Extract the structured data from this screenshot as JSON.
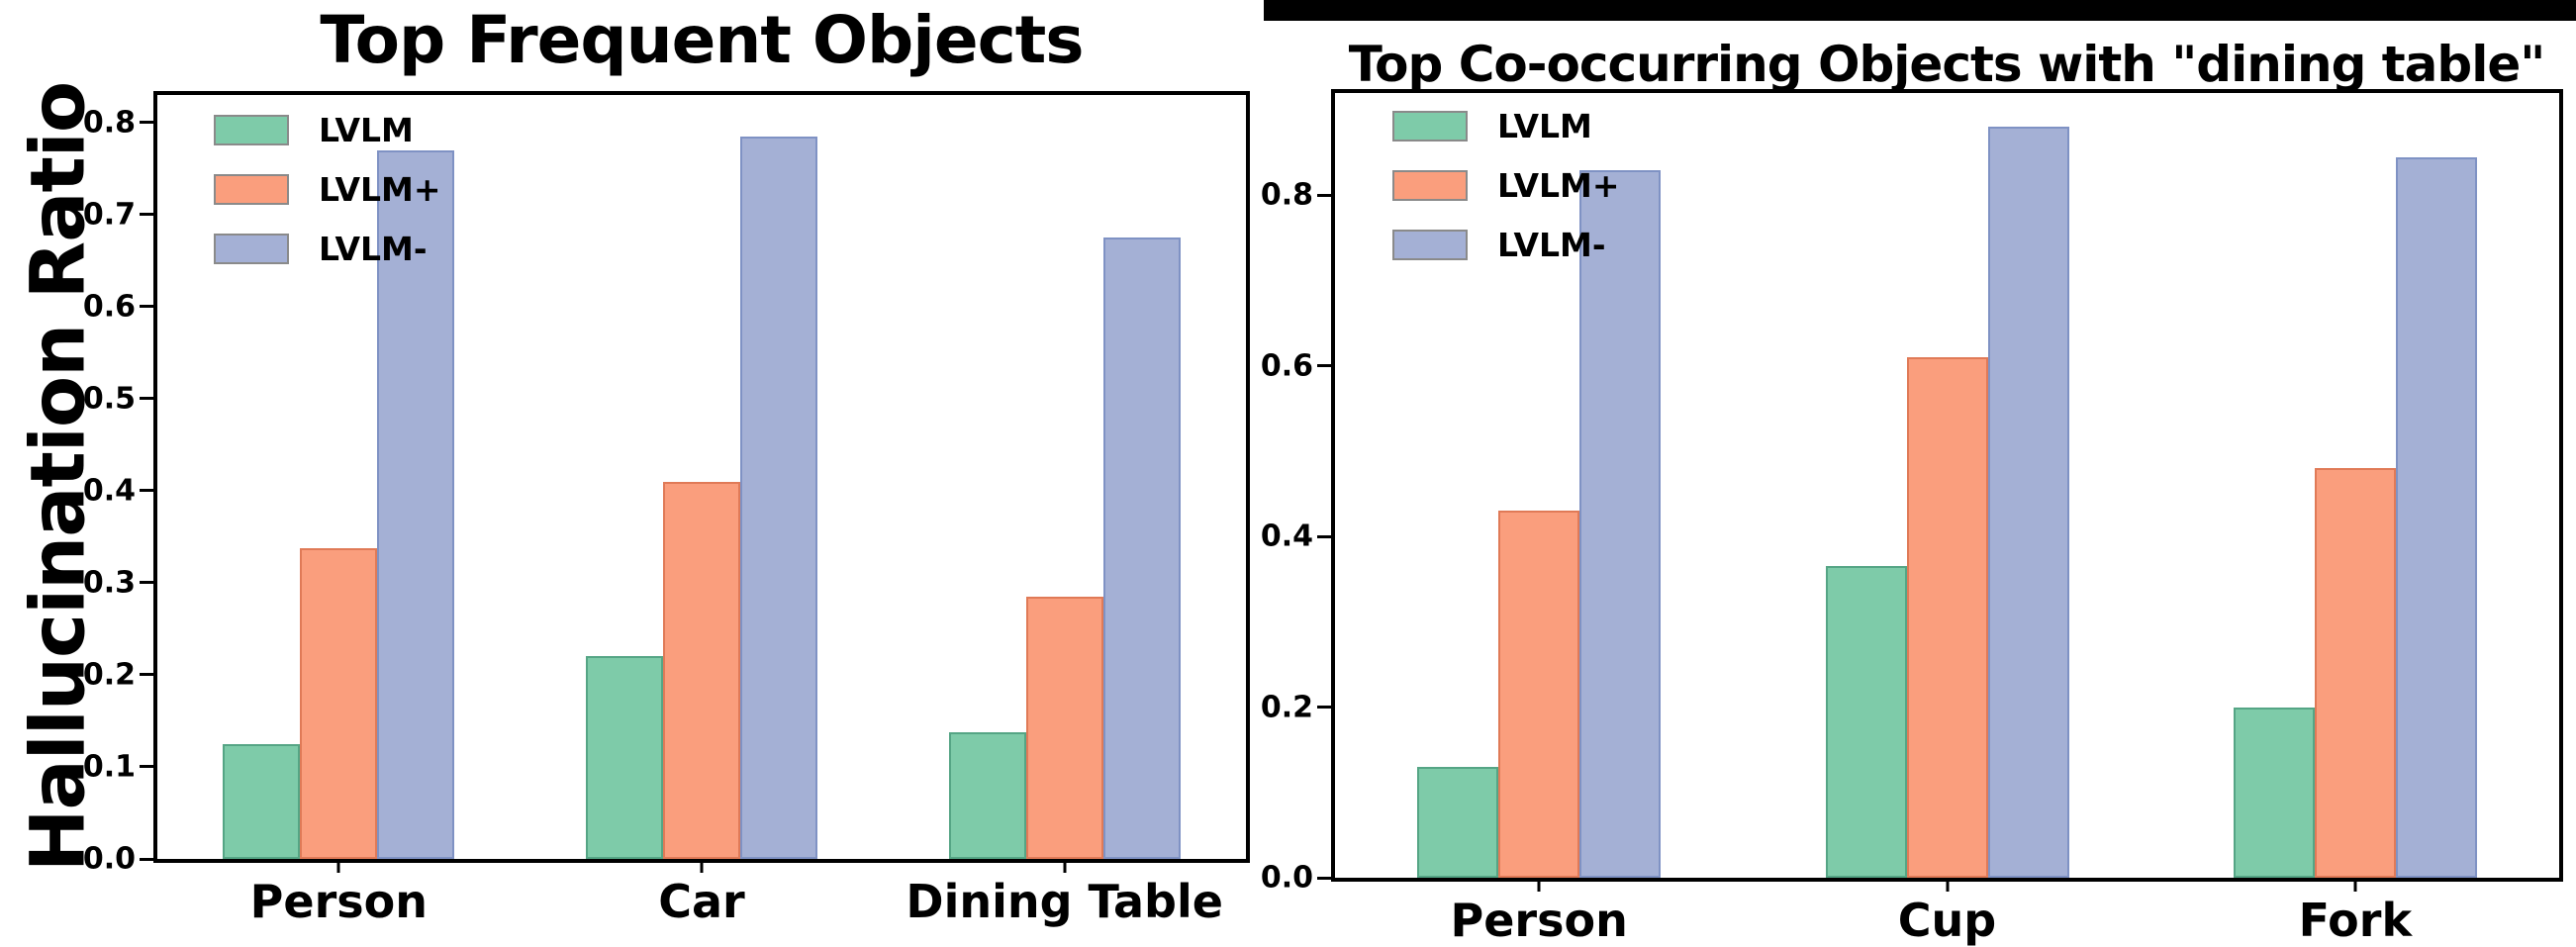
{
  "colors": {
    "background": "#ffffff",
    "axis": "#000000",
    "redaction_bar": "#000000"
  },
  "chart_data": [
    {
      "type": "bar",
      "title": "Top Frequent Objects",
      "ylabel": "Hallucination Ratio",
      "xlabel": "",
      "categories": [
        "Person",
        "Car",
        "Dining Table"
      ],
      "series": [
        {
          "name": "LVLM",
          "color": "#7ecba9",
          "edge": "#55a585",
          "values": [
            0.125,
            0.22,
            0.138
          ]
        },
        {
          "name": "LVLM+",
          "color": "#fa9e7d",
          "edge": "#e07a57",
          "values": [
            0.338,
            0.41,
            0.285
          ]
        },
        {
          "name": "LVLM-",
          "color": "#a4b0d5",
          "edge": "#7f92c4",
          "values": [
            0.77,
            0.785,
            0.675
          ]
        }
      ],
      "ylim": [
        0,
        0.83
      ],
      "yticks": [
        "0.0",
        "0.1",
        "0.2",
        "0.3",
        "0.4",
        "0.5",
        "0.6",
        "0.7",
        "0.8"
      ],
      "legend_position": "upper left",
      "legend_frame": false,
      "grid": false
    },
    {
      "type": "bar",
      "title": "Top Co-occurring Objects with \"dining table\"",
      "ylabel": "",
      "xlabel": "",
      "categories": [
        "Person",
        "Cup",
        "Fork"
      ],
      "series": [
        {
          "name": "LVLM",
          "color": "#7ecba9",
          "edge": "#55a585",
          "values": [
            0.13,
            0.365,
            0.2
          ]
        },
        {
          "name": "LVLM+",
          "color": "#fa9e7d",
          "edge": "#e07a57",
          "values": [
            0.43,
            0.61,
            0.48
          ]
        },
        {
          "name": "LVLM-",
          "color": "#a4b0d5",
          "edge": "#7f92c4",
          "values": [
            0.83,
            0.88,
            0.845
          ]
        }
      ],
      "ylim": [
        0,
        0.92
      ],
      "yticks": [
        "0.0",
        "0.2",
        "0.4",
        "0.6",
        "0.8"
      ],
      "legend_position": "upper left",
      "legend_frame": false,
      "grid": false
    }
  ]
}
